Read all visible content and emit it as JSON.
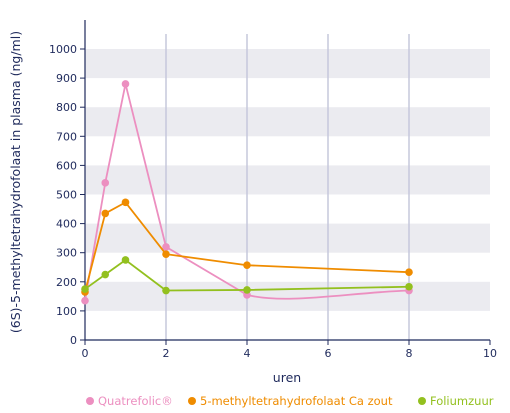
{
  "chart_data": {
    "type": "line",
    "xlabel": "uren",
    "ylabel": "(6S)-5-methyltetrahydrofolaat in plasma (ng/ml)",
    "xlim": [
      0,
      10
    ],
    "ylim": [
      0,
      1000
    ],
    "xticks": [
      "0",
      "2",
      "4",
      "6",
      "8",
      "10"
    ],
    "yticks": [
      "0",
      "100",
      "200",
      "300",
      "400",
      "500",
      "600",
      "700",
      "800",
      "900",
      "1000"
    ],
    "grid": "horizontal bands, vertical lines at x = 2, 4, 6, 8",
    "legend_position": "bottom",
    "series": [
      {
        "name": "Quatrefolic®",
        "color": "#ec8fc0",
        "x": [
          0,
          0.5,
          1,
          2,
          4,
          8
        ],
        "y": [
          135,
          540,
          880,
          320,
          155,
          170
        ]
      },
      {
        "name": "5-methyltetrahydrofolaat Ca zout",
        "color": "#ef8c00",
        "x": [
          0,
          0.5,
          1,
          2,
          4,
          8
        ],
        "y": [
          165,
          435,
          473,
          295,
          257,
          233
        ]
      },
      {
        "name": "Foliumzuur",
        "color": "#93c01f",
        "x": [
          0,
          0.5,
          1,
          2,
          4,
          8
        ],
        "y": [
          175,
          225,
          275,
          170,
          172,
          183
        ]
      }
    ]
  }
}
